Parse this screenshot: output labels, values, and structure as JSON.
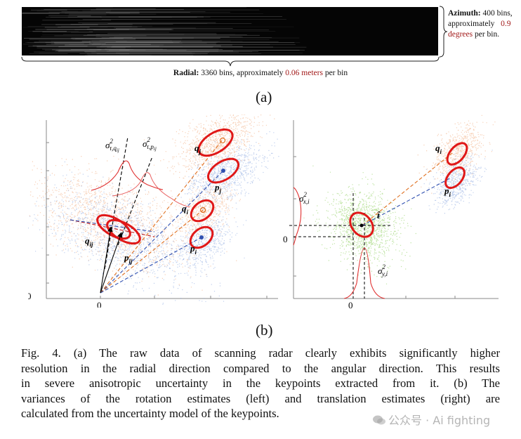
{
  "panel_a": {
    "azimuth_label": "Azimuth:",
    "azimuth_line1": "400 bins,",
    "azimuth_line2_text": "approximately",
    "azimuth_value": "0.9",
    "azimuth_unit": "degrees",
    "azimuth_tail": "per bin.",
    "radial_label": "Radial:",
    "radial_text": "3360 bins, approximately",
    "radial_value": "0.06 meters",
    "radial_tail": "per bin"
  },
  "sublabel_a": "(a)",
  "sublabel_b": "(b)",
  "panel_b_left": {
    "origin_x": "0",
    "origin_y": "0",
    "sigma_q": "σ",
    "sigma_q_sup": "2",
    "sigma_q_sub": "τ,q",
    "sigma_q_subsub": "ij",
    "sigma_p": "σ",
    "sigma_p_sup": "2",
    "sigma_p_sub": "τ,p",
    "sigma_p_subsub": "ij",
    "label_qj": "q",
    "label_qj_sub": "j",
    "label_pj": "p",
    "label_pj_sub": "j",
    "label_qi": "q",
    "label_qi_sub": "i",
    "label_pi": "p",
    "label_pi_sub": "i",
    "label_qij": "q",
    "label_qij_sub": "ij",
    "label_pij": "p",
    "label_pij_sub": "ij"
  },
  "panel_b_right": {
    "origin_x": "0",
    "origin_y": "0",
    "sigma_x": "σ",
    "sigma_x_sup": "2",
    "sigma_x_sub": "x,i",
    "sigma_y": "σ",
    "sigma_y_sup": "2",
    "sigma_y_sub": "y,i",
    "label_t": "t̂",
    "label_qi": "q",
    "label_qi_sub": "i",
    "label_pi": "p",
    "label_pi_sub": "i"
  },
  "caption": {
    "line1": "Fig. 4.  (a) The raw data of scanning radar clearly exhibits significantly higher",
    "line2": "resolution in the radial direction compared to the angular direction. This results",
    "line3": "in severe anisotropic uncertainty in the keypoints extracted from it. (b) The",
    "line4": "variances of the rotation estimates (left) and translation estimates (right) are",
    "line5": "calculated from the uncertainty model of the keypoints."
  },
  "watermark": {
    "text": "公众号 · Ai fighting"
  },
  "colors": {
    "orange_cloud": "#f0a878",
    "blue_cloud": "#8aa8e0",
    "green_cloud": "#88cc55",
    "ellipse_red": "#e01818",
    "orange_dash": "#e07020",
    "blue_dash": "#3050b0",
    "highlight": "#a11818"
  }
}
